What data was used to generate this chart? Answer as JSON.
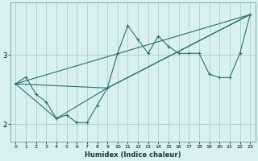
{
  "xlabel": "Humidex (Indice chaleur)",
  "bg_color": "#d8f0f0",
  "grid_color": "#aacfcf",
  "line_color": "#2a6e6e",
  "xlim": [
    -0.5,
    23.5
  ],
  "ylim": [
    1.75,
    3.75
  ],
  "yticks": [
    2,
    3
  ],
  "xticks": [
    0,
    1,
    2,
    3,
    4,
    5,
    6,
    7,
    8,
    9,
    10,
    11,
    12,
    13,
    14,
    15,
    16,
    17,
    18,
    19,
    20,
    21,
    22,
    23
  ],
  "series1_x": [
    0,
    1,
    2,
    3,
    4,
    5,
    6,
    7,
    8,
    9,
    10,
    11,
    12,
    13,
    14,
    15,
    16,
    17,
    18,
    19,
    20,
    21,
    22,
    23
  ],
  "series1_y": [
    2.58,
    2.68,
    2.43,
    2.32,
    2.08,
    2.13,
    2.02,
    2.02,
    2.27,
    2.52,
    3.02,
    3.42,
    3.22,
    3.02,
    3.27,
    3.12,
    3.02,
    3.02,
    3.02,
    2.72,
    2.67,
    2.67,
    3.02,
    3.58
  ],
  "series2_x": [
    0,
    23
  ],
  "series2_y": [
    2.58,
    3.58
  ],
  "series3_x": [
    0,
    9,
    23
  ],
  "series3_y": [
    2.58,
    2.52,
    3.58
  ],
  "series4_x": [
    0,
    4,
    9,
    23
  ],
  "series4_y": [
    2.58,
    2.08,
    2.52,
    3.58
  ]
}
